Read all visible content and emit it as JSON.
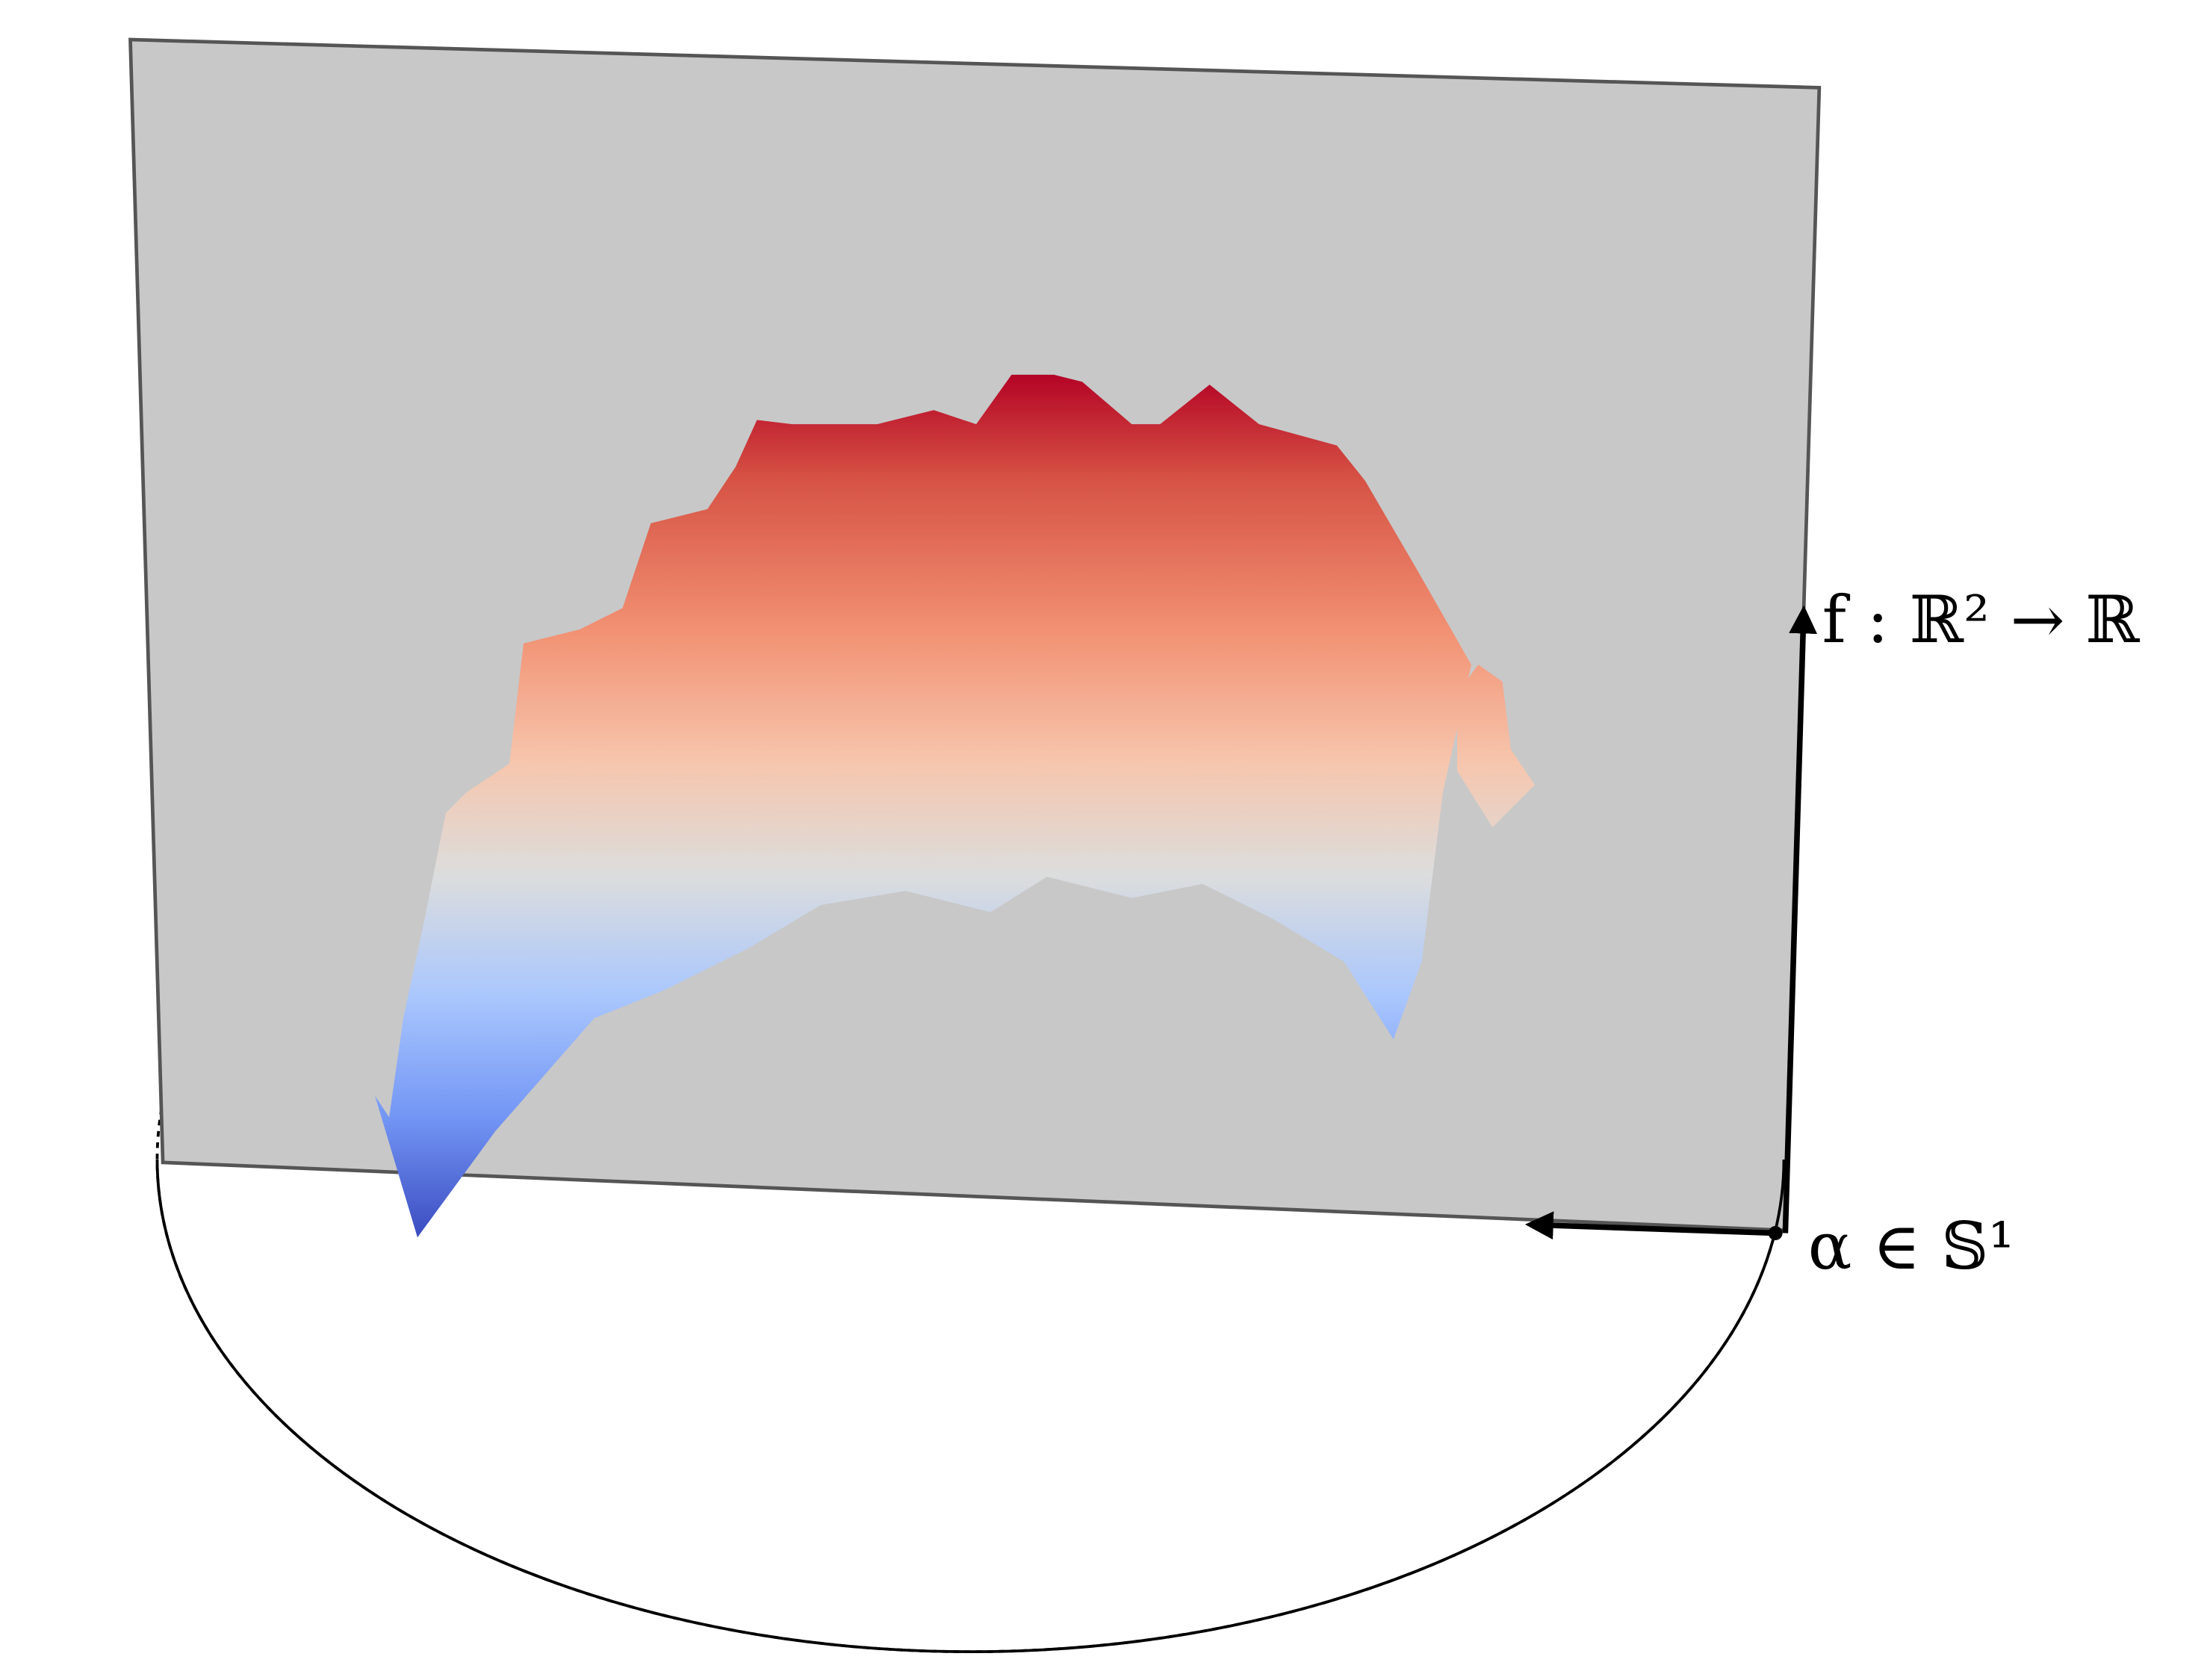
{
  "labels": {
    "function": "f : ℝ² → ℝ",
    "angle": "α ∈ 𝕊¹"
  }
}
